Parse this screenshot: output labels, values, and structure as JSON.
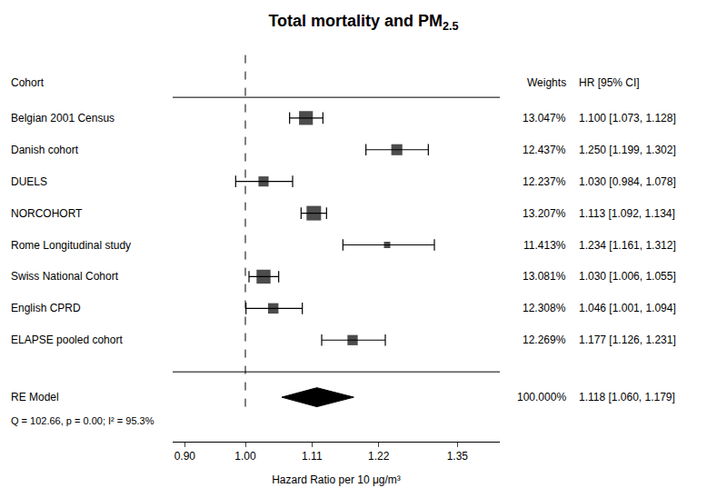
{
  "chart_data": {
    "type": "forest",
    "title": "Total mortality and PM",
    "title_subscript": "2.5",
    "xlabel": "Hazard Ratio per 10 μg/m³",
    "column_headers": [
      "Cohort",
      "Weights",
      "HR [95% CI]"
    ],
    "categories": [
      "Belgian 2001 Census",
      "Danish cohort",
      "DUELS",
      "NORCOHORT",
      "Rome Longitudinal study",
      "Swiss National Cohort",
      "English CPRD",
      "ELAPSE pooled cohort"
    ],
    "values": [
      1.1,
      1.25,
      1.03,
      1.113,
      1.234,
      1.03,
      1.046,
      1.177
    ],
    "lower": [
      1.073,
      1.199,
      0.984,
      1.092,
      1.161,
      1.006,
      1.001,
      1.126
    ],
    "upper": [
      1.128,
      1.302,
      1.078,
      1.134,
      1.312,
      1.055,
      1.094,
      1.231
    ],
    "value_labels": [
      "1.100 [1.073, 1.128]",
      "1.250 [1.199, 1.302]",
      "1.030 [0.984, 1.078]",
      "1.113 [1.092, 1.134]",
      "1.234 [1.161, 1.312]",
      "1.030 [1.006, 1.055]",
      "1.046 [1.001, 1.094]",
      "1.177 [1.126, 1.231]"
    ],
    "weights": [
      13.047,
      12.437,
      12.237,
      13.207,
      11.413,
      13.081,
      12.308,
      12.269
    ],
    "weight_labels": [
      "13.047%",
      "12.437%",
      "12.237%",
      "13.207%",
      "11.413%",
      "13.081%",
      "12.308%",
      "12.269%"
    ],
    "summary": {
      "name": "RE Model",
      "value": 1.118,
      "lower": 1.06,
      "upper": 1.179,
      "weight": 100.0,
      "weight_label": "100.000%",
      "value_label": "1.118 [1.060, 1.179]",
      "color": "black"
    },
    "annotations": [
      "Q = 102.66, p = 0.00; I² = 95.3%"
    ],
    "reference_line": 1.0,
    "xlim": [
      0.88,
      1.42
    ],
    "xticks": [
      {
        "value": 0.9,
        "label": "0.90"
      },
      {
        "value": 1.0,
        "label": "1.00"
      },
      1.11,
      1.22,
      1.35
    ],
    "color": "black",
    "grid": false,
    "tick_labels": "x"
  }
}
